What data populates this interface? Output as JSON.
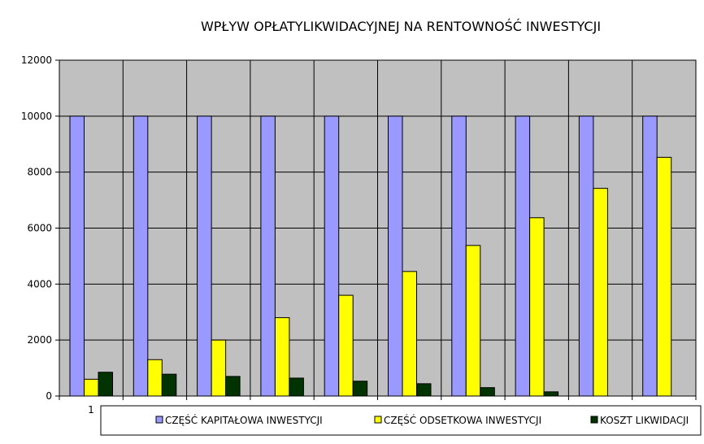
{
  "chart_data": {
    "type": "bar",
    "title": "WPŁYW OPŁATYLIKWIDACYJNEJ NA RENTOWNOŚĆ INWESTYCJI",
    "xlabel": "",
    "ylabel": "",
    "ylim": [
      0,
      12000
    ],
    "yticks": [
      0,
      2000,
      4000,
      6000,
      8000,
      10000,
      12000
    ],
    "categories": [
      "1",
      "",
      "",
      "",
      "",
      "",
      "",
      "",
      "",
      ""
    ],
    "grid": true,
    "legend_position": "bottom",
    "plot_background": "#c0c0c0",
    "series": [
      {
        "name": "CZĘŚĆ KAPITAŁOWA INWESTYCJI",
        "color": "#9999ff",
        "values": [
          10000,
          10000,
          10000,
          10000,
          10000,
          10000,
          10000,
          10000,
          10000,
          10000
        ]
      },
      {
        "name": "CZĘŚĆ ODSETKOWA INWESTYCJI",
        "color": "#ffff00",
        "values": [
          600,
          1300,
          2000,
          2800,
          3600,
          4450,
          5380,
          6370,
          7420,
          8530
        ]
      },
      {
        "name": "KOSZT LIKWIDACJI",
        "color": "#003300",
        "values": [
          850,
          780,
          700,
          640,
          530,
          440,
          300,
          150,
          0,
          0
        ]
      }
    ]
  }
}
